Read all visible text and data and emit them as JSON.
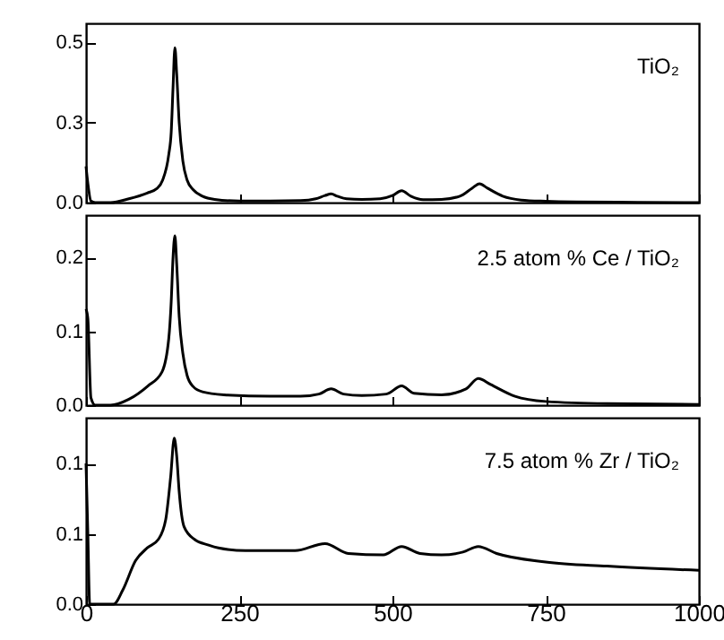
{
  "chart_data": [
    {
      "type": "line",
      "x": [
        0,
        3,
        8,
        15,
        40,
        70,
        100,
        115,
        125,
        135,
        139,
        142,
        145,
        148,
        152,
        158,
        165,
        175,
        190,
        210,
        250,
        300,
        350,
        375,
        390,
        400,
        410,
        425,
        450,
        480,
        500,
        515,
        530,
        550,
        580,
        610,
        630,
        642,
        655,
        680,
        710,
        750,
        800,
        900,
        1000
      ],
      "series": [
        {
          "color": "#000000",
          "values": [
            0.113,
            0.06,
            0.005,
            0,
            0,
            0.012,
            0.03,
            0.043,
            0.07,
            0.15,
            0.22,
            0.36,
            0.484,
            0.4,
            0.25,
            0.13,
            0.07,
            0.04,
            0.02,
            0.01,
            0.005,
            0.005,
            0.006,
            0.012,
            0.022,
            0.027,
            0.02,
            0.012,
            0.01,
            0.012,
            0.022,
            0.037,
            0.02,
            0.009,
            0.01,
            0.02,
            0.045,
            0.059,
            0.045,
            0.02,
            0.008,
            0.004,
            0.002,
            0.001,
            0
          ]
        }
      ],
      "xlim": [
        0,
        1000
      ],
      "ylim": [
        0,
        0.56
      ],
      "yticks": [
        {
          "value": 0,
          "label": "0.0"
        },
        {
          "value": 0.25,
          "label": "0.3"
        },
        0.5
      ],
      "tick_labels": "y",
      "annotations": [
        "TiO₂"
      ]
    },
    {
      "type": "line",
      "x": [
        0,
        3,
        8,
        15,
        40,
        70,
        101,
        124,
        135,
        139,
        142,
        145,
        148,
        152,
        158,
        165,
        175,
        190,
        225,
        300,
        350,
        380,
        400,
        420,
        450,
        490,
        515,
        535,
        580,
        620,
        640,
        660,
        700,
        750,
        850,
        1000
      ],
      "series": [
        {
          "color": "#000000",
          "values": [
            0.13,
            0.117,
            0.01,
            0,
            0,
            0.008,
            0.026,
            0.045,
            0.09,
            0.14,
            0.2,
            0.229,
            0.19,
            0.12,
            0.07,
            0.04,
            0.025,
            0.018,
            0.014,
            0.012,
            0.012,
            0.015,
            0.022,
            0.015,
            0.013,
            0.015,
            0.026,
            0.016,
            0.014,
            0.022,
            0.036,
            0.028,
            0.012,
            0.005,
            0.002,
            0.001
          ]
        }
      ],
      "xlim": [
        0,
        1000
      ],
      "ylim": [
        0,
        0.257
      ],
      "yticks": [
        {
          "value": 0,
          "label": "0.0"
        },
        0.1,
        0.2
      ],
      "tick_labels": "y",
      "annotations": [
        "2.5 atom % Ce / TiO₂"
      ]
    },
    {
      "type": "line",
      "x": [
        0,
        3,
        6,
        15,
        45,
        60,
        81,
        100,
        118,
        130,
        138,
        144,
        148,
        152,
        160,
        177,
        200,
        216,
        260,
        341,
        390,
        428,
        485,
        515,
        545,
        580,
        615,
        640,
        670,
        750,
        850,
        1000
      ],
      "series": [
        {
          "color": "#000000",
          "values": [
            0.1,
            0.05,
            0,
            0,
            0,
            0.01,
            0.031,
            0.04,
            0.046,
            0.06,
            0.09,
            0.118,
            0.105,
            0.08,
            0.055,
            0.046,
            0.042,
            0.04,
            0.038,
            0.038,
            0.043,
            0.036,
            0.035,
            0.041,
            0.036,
            0.035,
            0.037,
            0.041,
            0.036,
            0.03,
            0.027,
            0.024
          ]
        }
      ],
      "xlim": [
        0,
        1000
      ],
      "ylim": [
        0,
        0.1325
      ],
      "xticks": [
        0,
        250,
        500,
        750,
        1000
      ],
      "yticks": [
        {
          "value": 0,
          "label": "0.0"
        },
        {
          "value": 0.05,
          "label": "0.1"
        },
        {
          "value": 0.1,
          "label": "0.1"
        }
      ],
      "annotations": [
        "7.5 atom % Zr / TiO₂"
      ]
    }
  ]
}
